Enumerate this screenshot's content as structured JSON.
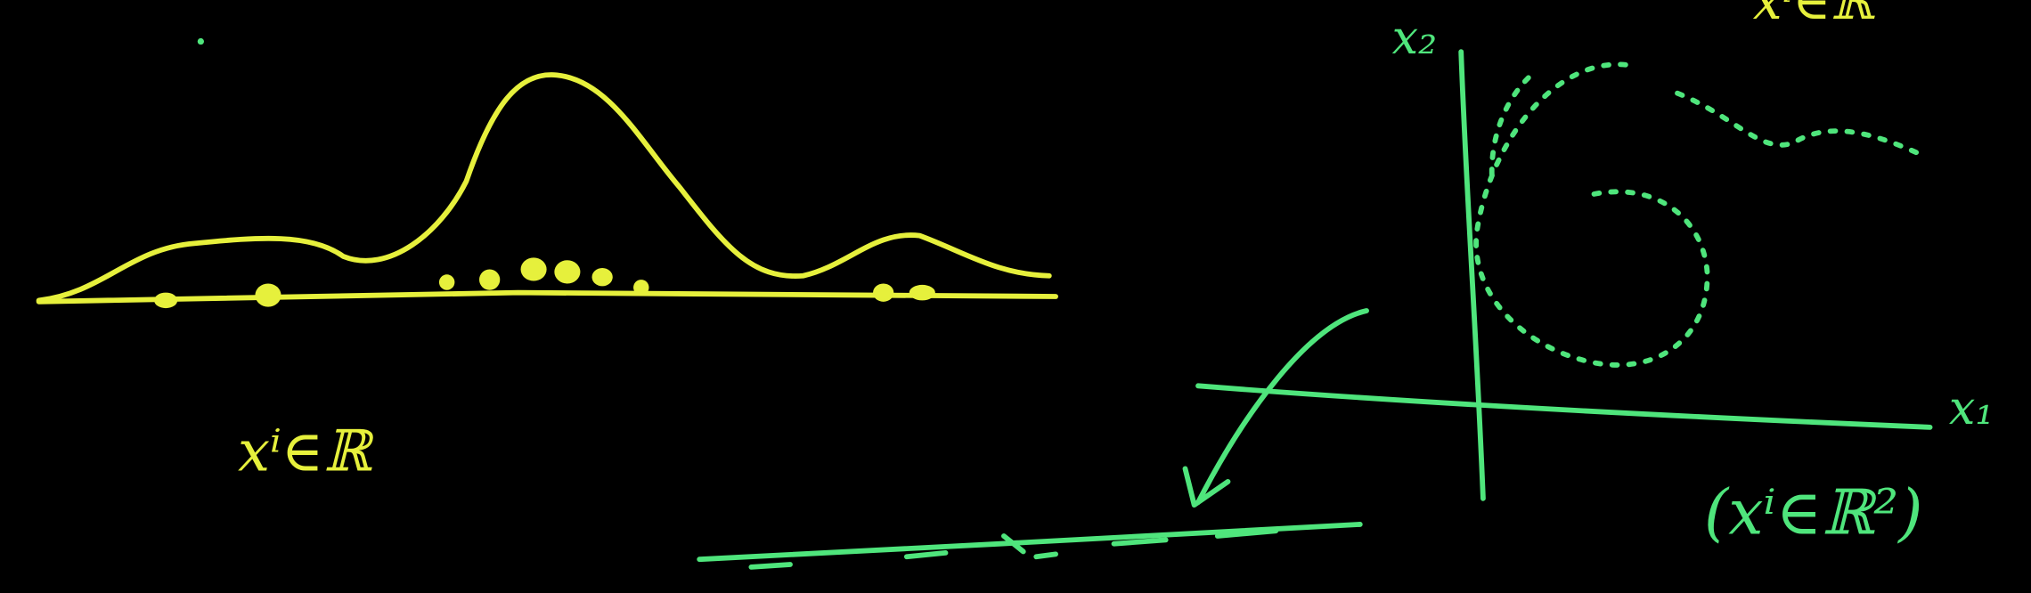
{
  "annotations": {
    "left_label": "xⁱ∈ℝ",
    "top_label": "xⁱ∈ℝ",
    "axis_x2": "x₂",
    "axis_x1": "x₁",
    "right_label": "(xⁱ∈ℝ²)"
  }
}
